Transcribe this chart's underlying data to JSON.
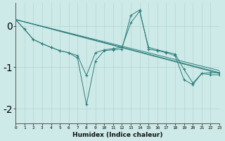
{
  "x": [
    0,
    1,
    2,
    3,
    4,
    5,
    6,
    7,
    8,
    9,
    10,
    11,
    12,
    13,
    14,
    15,
    16,
    17,
    18,
    19,
    20,
    21,
    22,
    23
  ],
  "line1": [
    0.15,
    -0.08,
    -0.33,
    -0.43,
    -0.52,
    -0.6,
    -0.65,
    -0.72,
    -1.2,
    -0.65,
    -0.58,
    -0.55,
    -0.52,
    0.07,
    0.35,
    -0.52,
    -0.58,
    -0.63,
    -0.68,
    -1.05,
    -1.38,
    -1.15,
    -1.13,
    -1.13
  ],
  "line2": [
    0.15,
    -0.08,
    -0.33,
    -0.43,
    -0.52,
    -0.6,
    -0.65,
    -0.78,
    -1.9,
    -0.85,
    -0.6,
    -0.58,
    -0.56,
    0.25,
    0.38,
    -0.56,
    -0.6,
    -0.65,
    -0.72,
    -1.3,
    -1.42,
    -1.15,
    -1.18,
    -1.18
  ],
  "line3_x": [
    0,
    23
  ],
  "line3_y": [
    0.15,
    -1.13
  ],
  "line4_x": [
    0,
    23
  ],
  "line4_y": [
    0.15,
    -1.15
  ],
  "line5_x": [
    0,
    23
  ],
  "line5_y": [
    0.15,
    -1.08
  ],
  "background_color": "#ceeae8",
  "grid_color": "#afd4d2",
  "line_color": "#2d7d7a",
  "xlabel": "Humidex (Indice chaleur)",
  "yticks": [
    0,
    -1,
    -2
  ],
  "xlim": [
    0,
    23
  ],
  "ylim": [
    -2.35,
    0.55
  ]
}
